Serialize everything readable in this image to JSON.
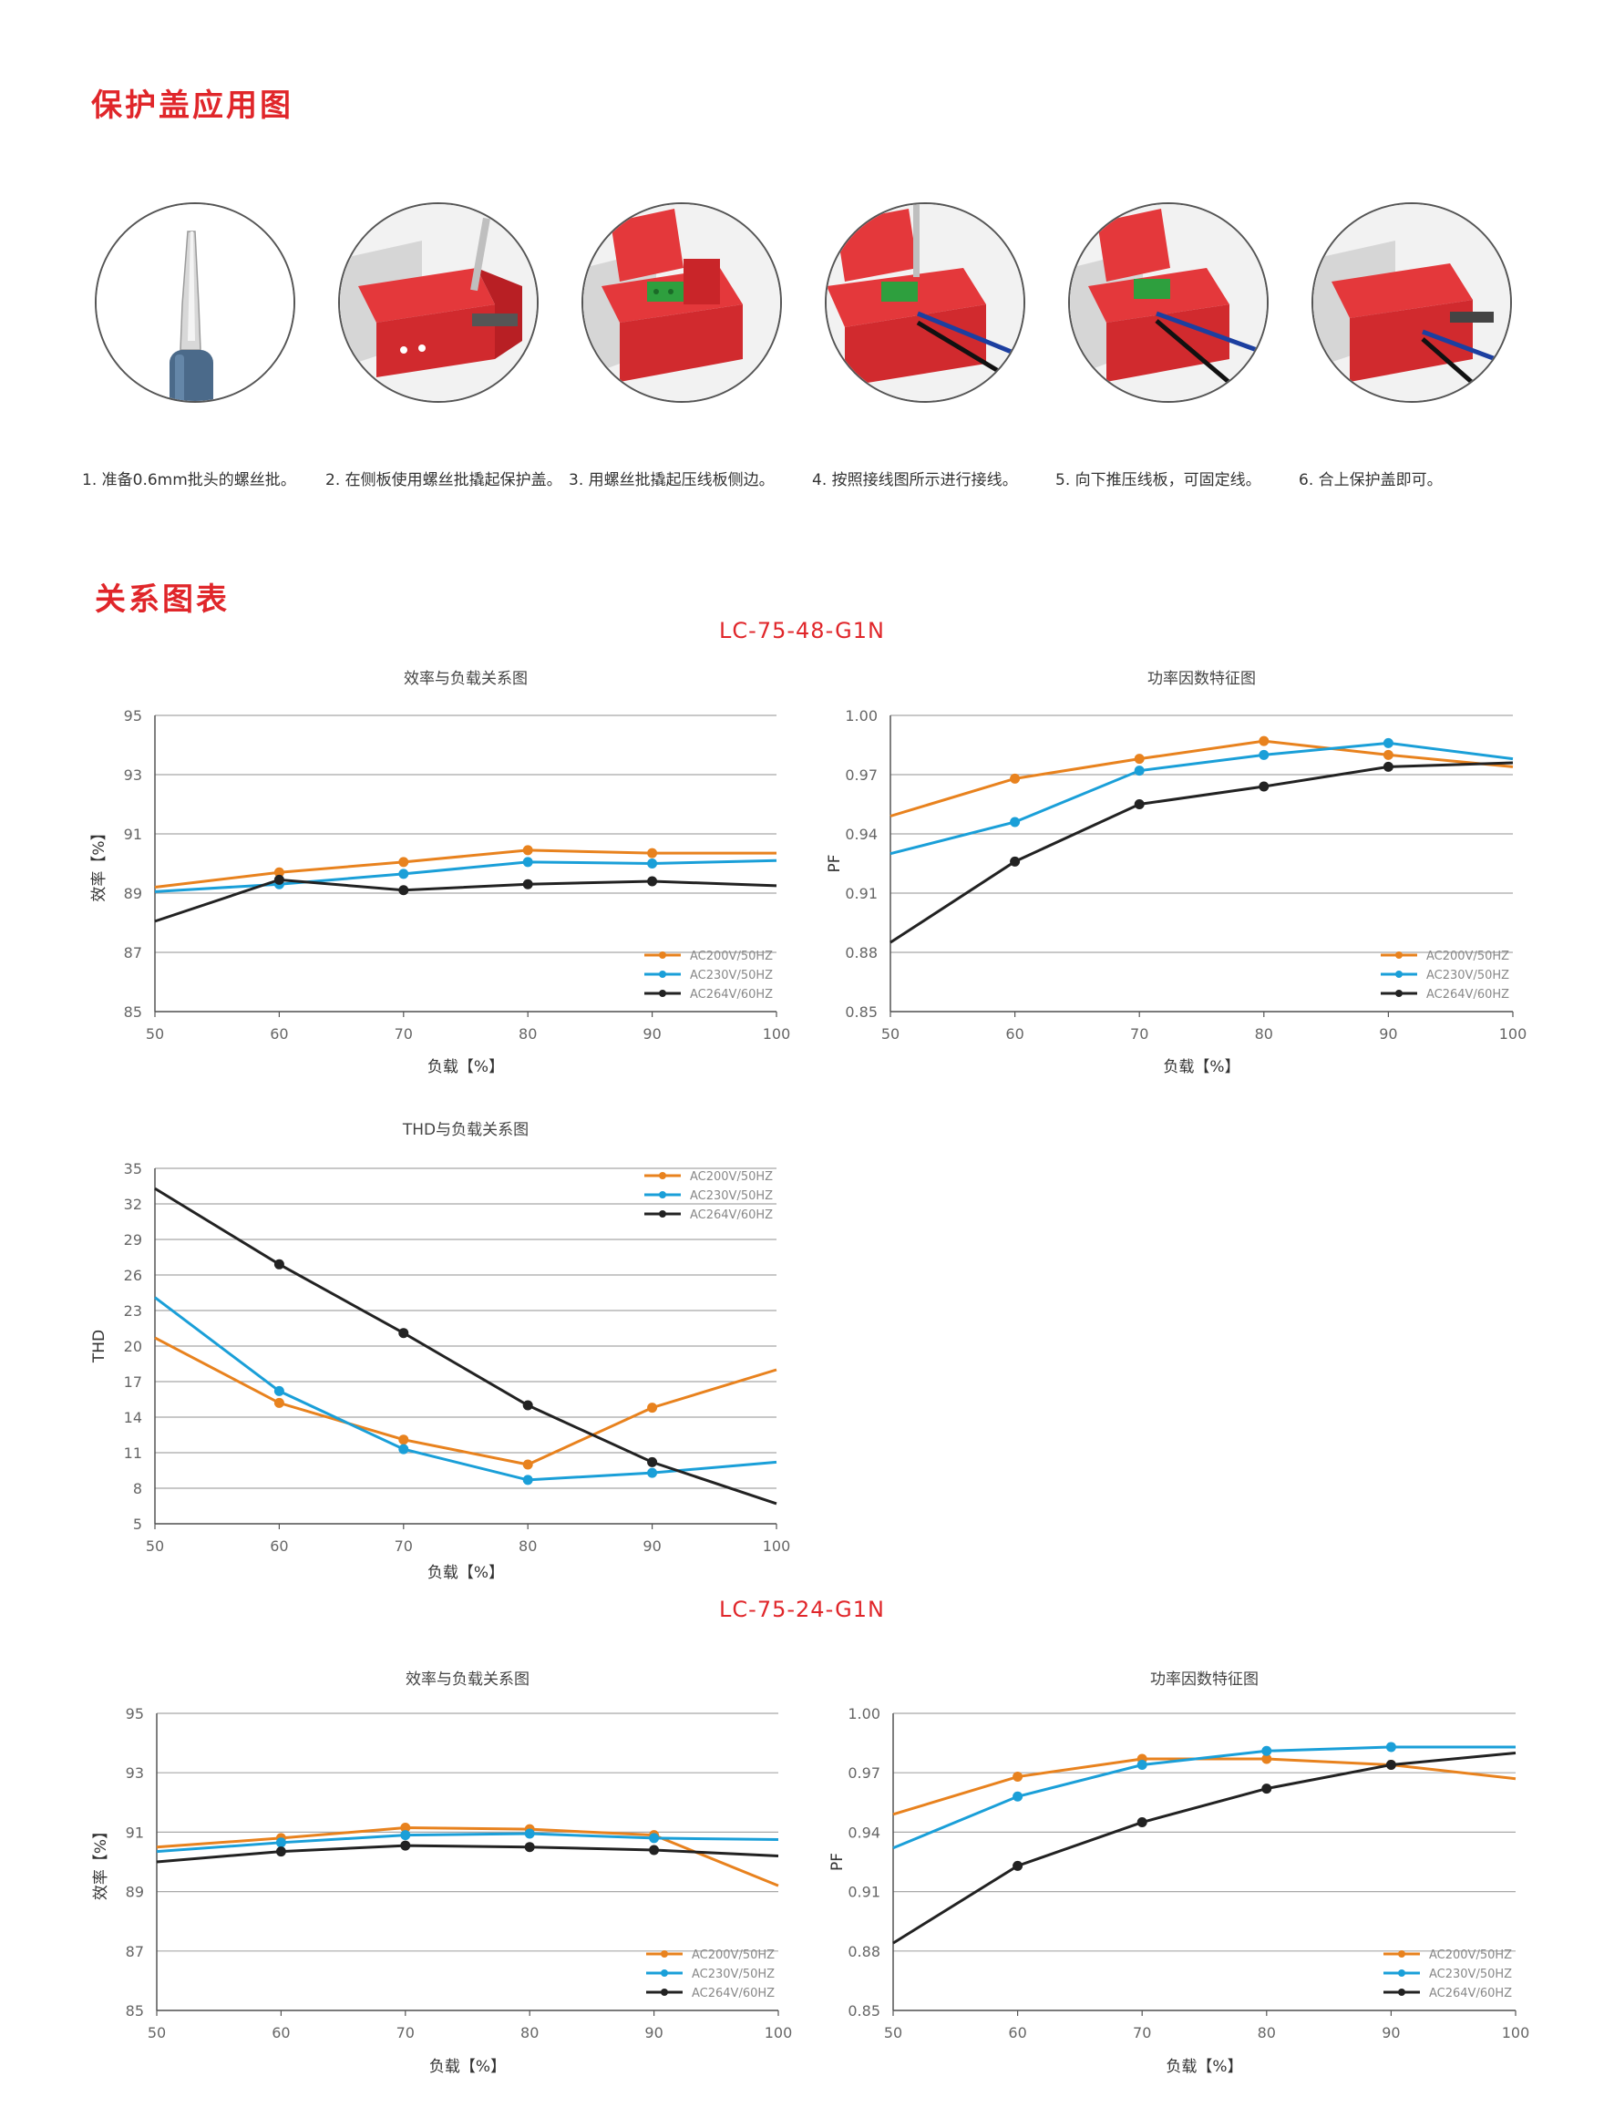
{
  "section_1": {
    "title": "保护盖应用图"
  },
  "steps": [
    {
      "caption": "1. 准备0.6mm批头的螺丝批。"
    },
    {
      "caption": "2. 在侧板使用螺丝批撬起保护盖。"
    },
    {
      "caption": "3. 用螺丝批撬起压线板侧边。"
    },
    {
      "caption": "4. 按照接线图所示进行接线。"
    },
    {
      "caption": "5. 向下推压线板，可固定线。"
    },
    {
      "caption": "6. 合上保护盖即可。"
    }
  ],
  "section_2": {
    "title": "关系图表"
  },
  "models": [
    {
      "title": "LC-75-48-G1N"
    },
    {
      "title": "LC-75-24-G1N"
    }
  ],
  "colors": {
    "accent": "#e0262a",
    "ac200": "#e8821e",
    "ac230": "#1a9fd8",
    "ac264": "#222222",
    "grid": "#999999"
  },
  "chart_data": [
    {
      "type": "line",
      "title": "效率与负载关系图",
      "xlabel": "负载【%】",
      "ylabel": "效率【%】",
      "x": [
        50,
        60,
        70,
        80,
        90,
        100
      ],
      "xlim": [
        50,
        100
      ],
      "ylim": [
        85,
        95
      ],
      "yticks": [
        "85",
        "87",
        "89",
        "91",
        "93",
        "95"
      ],
      "xticks": [
        "50",
        "60",
        "70",
        "80",
        "90",
        "100"
      ],
      "legend": "bottom-right",
      "grid": "horizontal",
      "series": [
        {
          "name": "AC200V/50HZ",
          "color": "#e8821e",
          "values": [
            89.2,
            89.7,
            90.05,
            90.45,
            90.35,
            90.35
          ]
        },
        {
          "name": "AC230V/50HZ",
          "color": "#1a9fd8",
          "values": [
            89.05,
            89.3,
            89.65,
            90.05,
            90.0,
            90.1
          ]
        },
        {
          "name": "AC264V/60HZ",
          "color": "#222222",
          "values": [
            88.05,
            89.45,
            89.1,
            89.3,
            89.4,
            89.25
          ]
        }
      ]
    },
    {
      "type": "line",
      "title": "功率因数特征图",
      "xlabel": "负载【%】",
      "ylabel": "PF",
      "x": [
        50,
        60,
        70,
        80,
        90,
        100
      ],
      "xlim": [
        50,
        100
      ],
      "ylim": [
        0.85,
        1.0
      ],
      "yticks": [
        "0.85",
        "0.88",
        "0.91",
        "0.94",
        "0.97",
        "1.00"
      ],
      "xticks": [
        "50",
        "60",
        "70",
        "80",
        "90",
        "100"
      ],
      "legend": "bottom-right",
      "grid": "horizontal",
      "series": [
        {
          "name": "AC200V/50HZ",
          "color": "#e8821e",
          "values": [
            0.949,
            0.968,
            0.978,
            0.987,
            0.98,
            0.974
          ]
        },
        {
          "name": "AC230V/50HZ",
          "color": "#1a9fd8",
          "values": [
            0.93,
            0.946,
            0.972,
            0.98,
            0.986,
            0.978
          ]
        },
        {
          "name": "AC264V/60HZ",
          "color": "#222222",
          "values": [
            0.885,
            0.926,
            0.955,
            0.964,
            0.974,
            0.976
          ]
        }
      ]
    },
    {
      "type": "line",
      "title": "THD与负载关系图",
      "xlabel": "负载【%】",
      "ylabel": "THD",
      "x": [
        50,
        60,
        70,
        80,
        90,
        100
      ],
      "xlim": [
        50,
        100
      ],
      "ylim": [
        5,
        35
      ],
      "yticks": [
        "5",
        "8",
        "11",
        "14",
        "17",
        "20",
        "23",
        "26",
        "29",
        "32",
        "35"
      ],
      "xticks": [
        "50",
        "60",
        "70",
        "80",
        "90",
        "100"
      ],
      "legend": "top-right",
      "grid": "horizontal",
      "series": [
        {
          "name": "AC200V/50HZ",
          "color": "#e8821e",
          "values": [
            20.7,
            15.2,
            12.1,
            10.0,
            14.8,
            18.0
          ]
        },
        {
          "name": "AC230V/50HZ",
          "color": "#1a9fd8",
          "values": [
            24.1,
            16.2,
            11.3,
            8.7,
            9.3,
            10.2
          ]
        },
        {
          "name": "AC264V/60HZ",
          "color": "#222222",
          "values": [
            33.3,
            26.9,
            21.1,
            15.0,
            10.2,
            6.7
          ]
        }
      ]
    },
    {
      "type": "line",
      "title": "效率与负载关系图",
      "xlabel": "负载【%】",
      "ylabel": "效率【%】",
      "x": [
        50,
        60,
        70,
        80,
        90,
        100
      ],
      "xlim": [
        50,
        100
      ],
      "ylim": [
        85,
        95
      ],
      "yticks": [
        "85",
        "87",
        "89",
        "91",
        "93",
        "95"
      ],
      "xticks": [
        "50",
        "60",
        "70",
        "80",
        "90",
        "100"
      ],
      "legend": "bottom-right",
      "grid": "horizontal",
      "series": [
        {
          "name": "AC200V/50HZ",
          "color": "#e8821e",
          "values": [
            90.5,
            90.8,
            91.15,
            91.1,
            90.9,
            89.2
          ]
        },
        {
          "name": "AC230V/50HZ",
          "color": "#1a9fd8",
          "values": [
            90.35,
            90.65,
            90.9,
            90.95,
            90.8,
            90.75
          ]
        },
        {
          "name": "AC264V/60HZ",
          "color": "#222222",
          "values": [
            90.0,
            90.35,
            90.55,
            90.5,
            90.4,
            90.2
          ]
        }
      ]
    },
    {
      "type": "line",
      "title": "功率因数特征图",
      "xlabel": "负载【%】",
      "ylabel": "PF",
      "x": [
        50,
        60,
        70,
        80,
        90,
        100
      ],
      "xlim": [
        50,
        100
      ],
      "ylim": [
        0.85,
        1.0
      ],
      "yticks": [
        "0.85",
        "0.88",
        "0.91",
        "0.94",
        "0.97",
        "1.00"
      ],
      "xticks": [
        "50",
        "60",
        "70",
        "80",
        "90",
        "100"
      ],
      "legend": "bottom-right",
      "grid": "horizontal",
      "series": [
        {
          "name": "AC200V/50HZ",
          "color": "#e8821e",
          "values": [
            0.949,
            0.968,
            0.977,
            0.977,
            0.974,
            0.967
          ]
        },
        {
          "name": "AC230V/50HZ",
          "color": "#1a9fd8",
          "values": [
            0.932,
            0.958,
            0.974,
            0.981,
            0.983,
            0.983
          ]
        },
        {
          "name": "AC264V/60HZ",
          "color": "#222222",
          "values": [
            0.884,
            0.923,
            0.945,
            0.962,
            0.974,
            0.98
          ]
        }
      ]
    }
  ]
}
